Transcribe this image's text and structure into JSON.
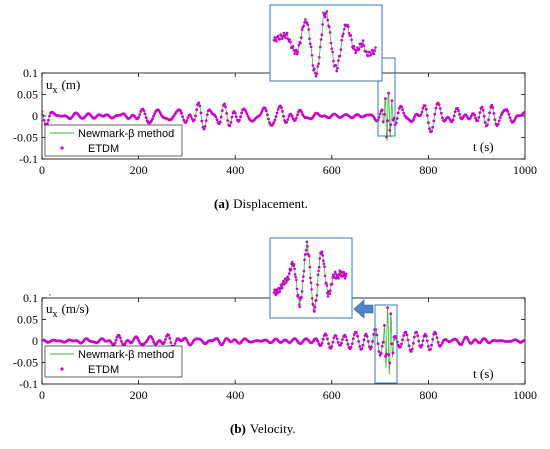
{
  "chart_data": [
    {
      "type": "line",
      "panel_label": "(a)",
      "caption": "Displacement.",
      "ylabel_symbol": "u",
      "ylabel_sub": "x",
      "ylabel_unit": "(m)",
      "xlabel": "t (s)",
      "xlim": [
        0,
        1000
      ],
      "ylim": [
        -0.1,
        0.1
      ],
      "xticks": [
        "0",
        "200",
        "400",
        "600",
        "800",
        "1000"
      ],
      "yticks": [
        "-0.1",
        "-0.05",
        "0",
        "0.05",
        "0.1"
      ],
      "legend_position": "bottom-left",
      "colors": {
        "newmark": "#3cb43c",
        "etdm": "#cc00cc",
        "zoom": "#3a7ab8"
      },
      "series": [
        {
          "name": "Newmark-β method",
          "style": "line"
        },
        {
          "name": "ETDM",
          "style": "dots"
        }
      ],
      "typical_amplitude": 0.02,
      "peak_region": {
        "x": [
          705,
          730
        ],
        "min": -0.055,
        "max": 0.068
      },
      "zoom_inset": {
        "x": [
          700,
          735
        ]
      }
    },
    {
      "type": "line",
      "panel_label": "(b)",
      "caption": "Velocity.",
      "ylabel_symbol": "u",
      "ylabel_sub": "x",
      "ylabel_unit": "(m/s)",
      "xlabel": "t (s)",
      "xlim": [
        0,
        1000
      ],
      "ylim": [
        -0.1,
        0.1
      ],
      "xticks": [
        "0",
        "200",
        "400",
        "600",
        "800",
        "1000"
      ],
      "yticks": [
        "-0.1",
        "-0.05",
        "0",
        "0.05",
        "0.1"
      ],
      "legend_position": "bottom-left",
      "colors": {
        "newmark": "#3cb43c",
        "etdm": "#cc00cc",
        "zoom": "#3a7ab8"
      },
      "series": [
        {
          "name": "Newmark-β method",
          "style": "line"
        },
        {
          "name": "ETDM",
          "style": "dots"
        }
      ],
      "typical_amplitude": 0.015,
      "peak_region": {
        "x": [
          705,
          730
        ],
        "min": -0.08,
        "max": 0.08
      },
      "zoom_inset": {
        "x": [
          700,
          735
        ]
      }
    }
  ]
}
